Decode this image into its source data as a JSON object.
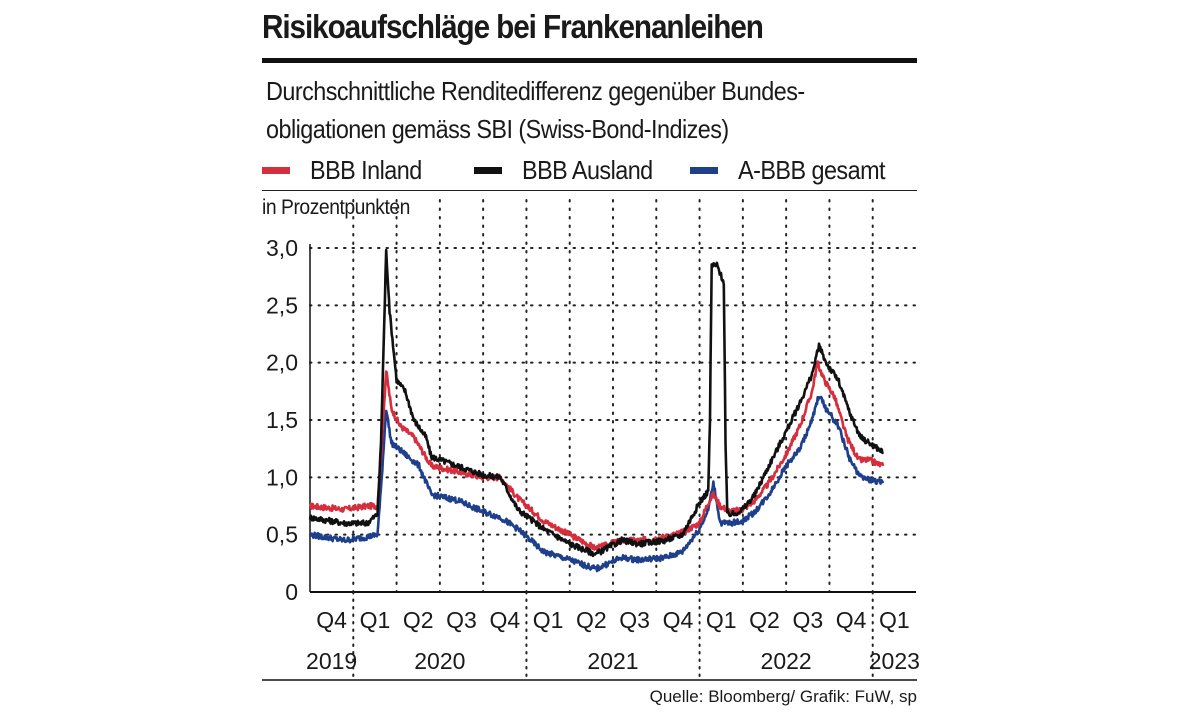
{
  "header": {
    "title": "Risikoaufschläge bei Frankenanleihen",
    "subtitle_line1": "Durchschnittliche Renditedifferenz gegenüber Bundes-",
    "subtitle_line2": "obligationen gemäss SBI (Swiss-Bond-Indizes)",
    "unit": "in Prozentpunkten"
  },
  "footer": {
    "source": "Quelle: Bloomberg/ Grafik: FuW, sp"
  },
  "colors": {
    "inland": "#d62e3d",
    "ausland": "#111111",
    "gesamt": "#1e3f8c",
    "grid": "#222222"
  },
  "chart_data": {
    "type": "line",
    "title": "Risikoaufschläge bei Frankenanleihen",
    "ylabel": "in Prozentpunkten",
    "ylim": [
      0,
      3.0
    ],
    "yticks": [
      "0",
      "0,5",
      "1,0",
      "1,5",
      "2,0",
      "2,5",
      "3,0"
    ],
    "ytick_values": [
      0,
      0.5,
      1.0,
      1.5,
      2.0,
      2.5,
      3.0
    ],
    "xlim": [
      2019.75,
      2023.25
    ],
    "quarter_labels": [
      {
        "label": "Q4",
        "pos": 2019.875
      },
      {
        "label": "Q1",
        "pos": 2020.125
      },
      {
        "label": "Q2",
        "pos": 2020.375
      },
      {
        "label": "Q3",
        "pos": 2020.625
      },
      {
        "label": "Q4",
        "pos": 2020.875
      },
      {
        "label": "Q1",
        "pos": 2021.125
      },
      {
        "label": "Q2",
        "pos": 2021.375
      },
      {
        "label": "Q3",
        "pos": 2021.625
      },
      {
        "label": "Q4",
        "pos": 2021.875
      },
      {
        "label": "Q1",
        "pos": 2022.125
      },
      {
        "label": "Q2",
        "pos": 2022.375
      },
      {
        "label": "Q3",
        "pos": 2022.625
      },
      {
        "label": "Q4",
        "pos": 2022.875
      },
      {
        "label": "Q1",
        "pos": 2023.125
      }
    ],
    "year_labels": [
      {
        "label": "2019",
        "pos": 2019.875
      },
      {
        "label": "2020",
        "pos": 2020.5
      },
      {
        "label": "2021",
        "pos": 2021.5
      },
      {
        "label": "2022",
        "pos": 2022.5
      },
      {
        "label": "2023",
        "pos": 2023.125
      }
    ],
    "year_separators": [
      2020.0,
      2021.0,
      2022.0,
      2023.0
    ],
    "series": [
      {
        "name": "BBB Inland",
        "color_key": "inland",
        "points": [
          [
            2019.75,
            0.75
          ],
          [
            2019.95,
            0.72
          ],
          [
            2020.08,
            0.75
          ],
          [
            2020.14,
            0.75
          ],
          [
            2020.16,
            1.2
          ],
          [
            2020.19,
            1.93
          ],
          [
            2020.22,
            1.6
          ],
          [
            2020.27,
            1.45
          ],
          [
            2020.35,
            1.35
          ],
          [
            2020.45,
            1.1
          ],
          [
            2020.6,
            1.05
          ],
          [
            2020.75,
            1.0
          ],
          [
            2020.85,
            1.0
          ],
          [
            2020.95,
            0.82
          ],
          [
            2021.1,
            0.62
          ],
          [
            2021.25,
            0.5
          ],
          [
            2021.4,
            0.38
          ],
          [
            2021.55,
            0.45
          ],
          [
            2021.65,
            0.45
          ],
          [
            2021.8,
            0.48
          ],
          [
            2021.9,
            0.52
          ],
          [
            2022.0,
            0.6
          ],
          [
            2022.05,
            0.78
          ],
          [
            2022.08,
            0.85
          ],
          [
            2022.12,
            0.75
          ],
          [
            2022.18,
            0.7
          ],
          [
            2022.25,
            0.72
          ],
          [
            2022.32,
            0.8
          ],
          [
            2022.4,
            0.95
          ],
          [
            2022.5,
            1.2
          ],
          [
            2022.58,
            1.45
          ],
          [
            2022.65,
            1.75
          ],
          [
            2022.68,
            2.0
          ],
          [
            2022.72,
            1.85
          ],
          [
            2022.78,
            1.7
          ],
          [
            2022.85,
            1.35
          ],
          [
            2022.92,
            1.15
          ],
          [
            2022.98,
            1.15
          ],
          [
            2023.06,
            1.1
          ]
        ]
      },
      {
        "name": "BBB Ausland",
        "color_key": "ausland",
        "points": [
          [
            2019.75,
            0.65
          ],
          [
            2019.95,
            0.6
          ],
          [
            2020.08,
            0.6
          ],
          [
            2020.14,
            0.68
          ],
          [
            2020.16,
            1.3
          ],
          [
            2020.19,
            2.97
          ],
          [
            2020.21,
            2.45
          ],
          [
            2020.25,
            1.85
          ],
          [
            2020.3,
            1.75
          ],
          [
            2020.35,
            1.5
          ],
          [
            2020.42,
            1.35
          ],
          [
            2020.45,
            1.18
          ],
          [
            2020.6,
            1.1
          ],
          [
            2020.75,
            1.02
          ],
          [
            2020.85,
            1.0
          ],
          [
            2020.95,
            0.72
          ],
          [
            2021.1,
            0.55
          ],
          [
            2021.25,
            0.42
          ],
          [
            2021.4,
            0.33
          ],
          [
            2021.55,
            0.45
          ],
          [
            2021.65,
            0.42
          ],
          [
            2021.8,
            0.45
          ],
          [
            2021.9,
            0.5
          ],
          [
            2022.0,
            0.78
          ],
          [
            2022.05,
            0.88
          ],
          [
            2022.06,
            1.5
          ],
          [
            2022.07,
            2.85
          ],
          [
            2022.1,
            2.85
          ],
          [
            2022.14,
            2.7
          ],
          [
            2022.15,
            1.3
          ],
          [
            2022.16,
            0.68
          ],
          [
            2022.2,
            0.68
          ],
          [
            2022.25,
            0.72
          ],
          [
            2022.32,
            0.85
          ],
          [
            2022.4,
            1.1
          ],
          [
            2022.5,
            1.4
          ],
          [
            2022.58,
            1.65
          ],
          [
            2022.65,
            1.9
          ],
          [
            2022.69,
            2.15
          ],
          [
            2022.73,
            2.0
          ],
          [
            2022.8,
            1.85
          ],
          [
            2022.87,
            1.55
          ],
          [
            2022.93,
            1.35
          ],
          [
            2022.98,
            1.3
          ],
          [
            2023.06,
            1.22
          ]
        ]
      },
      {
        "name": "A-BBB gesamt",
        "color_key": "gesamt",
        "points": [
          [
            2019.75,
            0.5
          ],
          [
            2019.95,
            0.45
          ],
          [
            2020.08,
            0.48
          ],
          [
            2020.14,
            0.5
          ],
          [
            2020.16,
            0.9
          ],
          [
            2020.19,
            1.6
          ],
          [
            2020.22,
            1.3
          ],
          [
            2020.3,
            1.2
          ],
          [
            2020.38,
            1.1
          ],
          [
            2020.45,
            0.85
          ],
          [
            2020.6,
            0.8
          ],
          [
            2020.75,
            0.7
          ],
          [
            2020.85,
            0.65
          ],
          [
            2020.95,
            0.55
          ],
          [
            2021.1,
            0.35
          ],
          [
            2021.25,
            0.28
          ],
          [
            2021.4,
            0.2
          ],
          [
            2021.55,
            0.3
          ],
          [
            2021.65,
            0.28
          ],
          [
            2021.8,
            0.3
          ],
          [
            2021.9,
            0.35
          ],
          [
            2022.0,
            0.55
          ],
          [
            2022.05,
            0.72
          ],
          [
            2022.08,
            0.95
          ],
          [
            2022.12,
            0.6
          ],
          [
            2022.18,
            0.6
          ],
          [
            2022.25,
            0.62
          ],
          [
            2022.32,
            0.7
          ],
          [
            2022.4,
            0.85
          ],
          [
            2022.5,
            1.1
          ],
          [
            2022.58,
            1.25
          ],
          [
            2022.65,
            1.5
          ],
          [
            2022.69,
            1.72
          ],
          [
            2022.73,
            1.6
          ],
          [
            2022.8,
            1.45
          ],
          [
            2022.87,
            1.15
          ],
          [
            2022.93,
            1.0
          ],
          [
            2022.98,
            0.98
          ],
          [
            2023.06,
            0.95
          ]
        ]
      }
    ]
  }
}
